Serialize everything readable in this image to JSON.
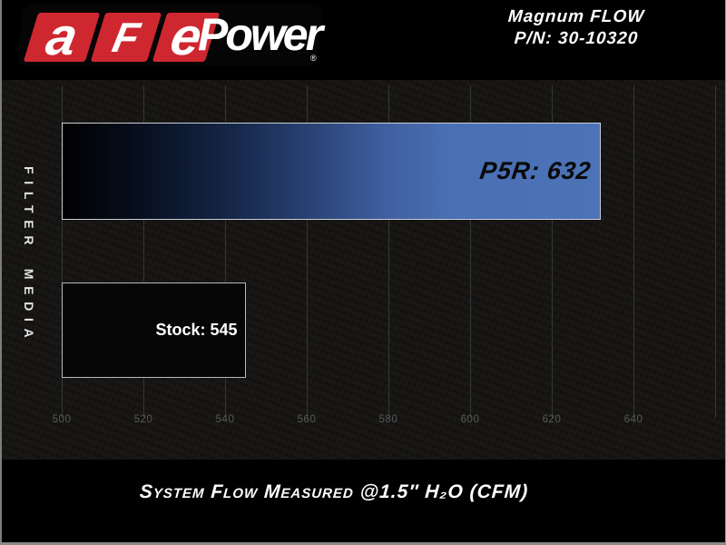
{
  "header": {
    "logo": {
      "red_letters": [
        "a",
        "F",
        "e"
      ],
      "wordmark": "Power",
      "registered_mark": "®"
    },
    "product_line": "Magnum FLOW",
    "part_number": "P/N: 30-10320"
  },
  "chart_data": {
    "type": "bar",
    "orientation": "horizontal",
    "title": "",
    "categories": [
      "P5R",
      "Stock"
    ],
    "values": [
      632,
      545
    ],
    "bar_labels": [
      "P5R: 632",
      "Stock: 545"
    ],
    "xlabel": "System Flow Measured @1.5″ H₂O (CFM)",
    "ylabel": "FILTER MEDIA",
    "xlim": [
      500,
      660
    ],
    "xticks": [
      "500",
      "520",
      "540",
      "560",
      "580",
      "600",
      "620",
      "640"
    ],
    "grid_values": [
      500,
      520,
      540,
      560,
      580,
      600,
      620,
      640,
      660
    ],
    "grid": true,
    "legend_position": "none"
  },
  "colors": {
    "brand_red": "#cf2730",
    "bar_blue": "#4a70b5",
    "bar_gradient_start": "#000000",
    "stock_bar_fill": "#060606",
    "bar_border": "#c4cad2",
    "gridline": "#363636",
    "tick_label": "#585858",
    "chart_background": "#171614",
    "band_background": "#000000",
    "text": "#ffffff"
  }
}
